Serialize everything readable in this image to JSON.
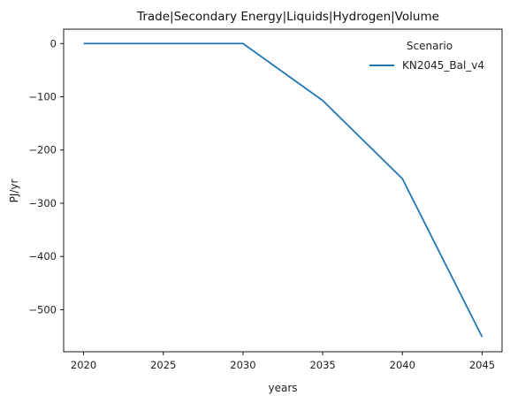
{
  "chart_data": {
    "type": "line",
    "title": "Trade|Secondary Energy|Liquids|Hydrogen|Volume",
    "xlabel": "years",
    "ylabel": "PJ/yr",
    "x": [
      2020,
      2025,
      2030,
      2035,
      2040,
      2045
    ],
    "x_ticks": [
      2020,
      2025,
      2030,
      2035,
      2040,
      2045
    ],
    "y_ticks": [
      0,
      -100,
      -200,
      -300,
      -400,
      -500
    ],
    "y_tick_labels": [
      "0",
      "−100",
      "−200",
      "−300",
      "−400",
      "−500"
    ],
    "xlim": [
      2018.75,
      2046.25
    ],
    "ylim": [
      -579,
      27
    ],
    "grid": false,
    "legend": {
      "title": "Scenario",
      "placement": "top-right"
    },
    "series": [
      {
        "name": "KN2045_Bal_v4",
        "color": "#1f77b4",
        "values": [
          0,
          0,
          0,
          -107,
          -254,
          -551
        ]
      }
    ]
  }
}
